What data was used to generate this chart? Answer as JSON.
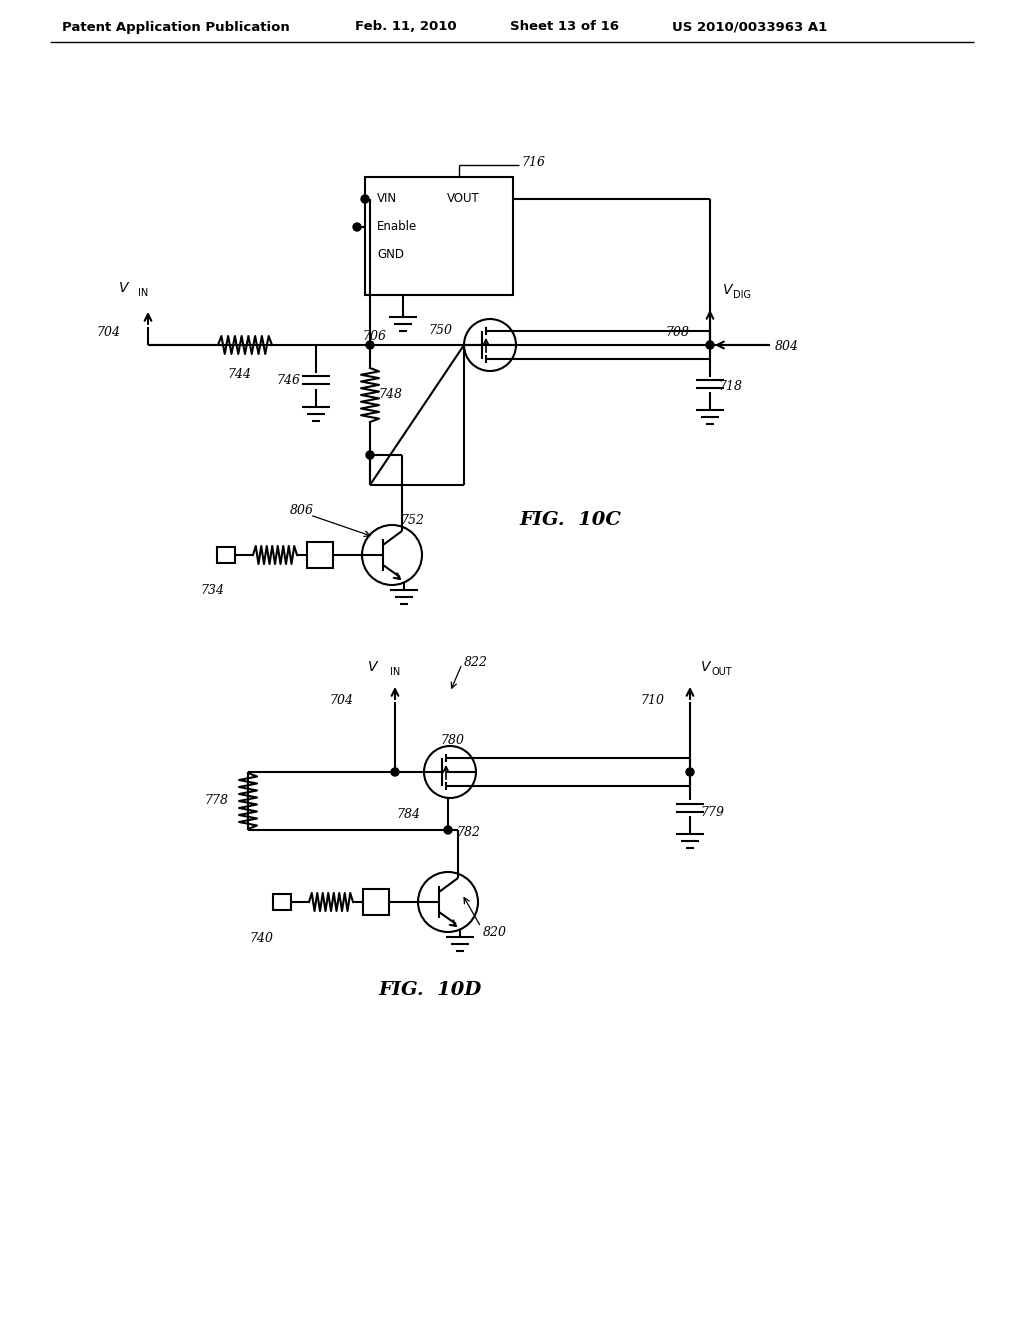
{
  "bg_color": "#ffffff",
  "line_color": "#000000",
  "header_text": "Patent Application Publication",
  "header_date": "Feb. 11, 2010",
  "header_sheet": "Sheet 13 of 16",
  "header_patent": "US 2010/0033963 A1",
  "fig10c_label": "FIG.  10C",
  "fig10d_label": "FIG.  10D"
}
